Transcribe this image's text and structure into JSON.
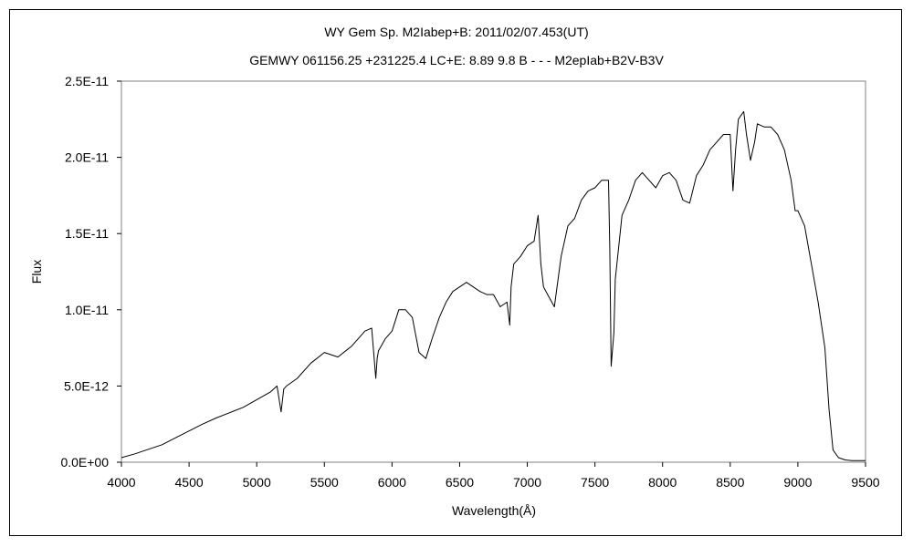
{
  "chart_data": {
    "type": "line",
    "title": "WY Gem     Sp. M2Iabep+B:    2011/02/07.453(UT)",
    "subtitle": "GEMWY 061156.25 +231225.4 LC+E: 8.89  9.8  B - - - M2epIab+B2V-B3V",
    "xlabel": "Wavelength(Å)",
    "ylabel": "Flux",
    "xlim": [
      4000,
      9500
    ],
    "ylim": [
      0,
      2.5e-11
    ],
    "x_ticks": [
      4000,
      4500,
      5000,
      5500,
      6000,
      6500,
      7000,
      7500,
      8000,
      8500,
      9000,
      9500
    ],
    "x_tick_labels": [
      "4000",
      "4500",
      "5000",
      "5500",
      "6000",
      "6500",
      "7000",
      "7500",
      "8000",
      "8500",
      "9000",
      "9500"
    ],
    "y_ticks": [
      0,
      5e-12,
      1e-11,
      1.5e-11,
      2e-11,
      2.5e-11
    ],
    "y_tick_labels": [
      "0.0E+00",
      "5.0E-12",
      "1.0E-11",
      "1.5E-11",
      "2.0E-11",
      "2.5E-11"
    ],
    "grid": false,
    "legend": "none",
    "line_color": "#000000",
    "series": [
      {
        "x": [
          4000,
          4100,
          4200,
          4300,
          4400,
          4500,
          4600,
          4700,
          4800,
          4900,
          5000,
          5100,
          5150,
          5180,
          5200,
          5220,
          5300,
          5400,
          5500,
          5600,
          5700,
          5800,
          5850,
          5880,
          5890,
          5900,
          5950,
          6000,
          6050,
          6100,
          6150,
          6200,
          6250,
          6300,
          6350,
          6400,
          6450,
          6500,
          6550,
          6600,
          6650,
          6700,
          6750,
          6800,
          6850,
          6870,
          6880,
          6900,
          6950,
          7000,
          7050,
          7080,
          7100,
          7120,
          7150,
          7200,
          7250,
          7300,
          7350,
          7400,
          7450,
          7500,
          7550,
          7600,
          7610,
          7620,
          7640,
          7650,
          7700,
          7750,
          7800,
          7850,
          7900,
          7950,
          8000,
          8050,
          8100,
          8150,
          8200,
          8250,
          8300,
          8350,
          8400,
          8450,
          8500,
          8520,
          8540,
          8560,
          8600,
          8620,
          8650,
          8680,
          8700,
          8750,
          8800,
          8850,
          8900,
          8950,
          8980,
          9000,
          9050,
          9100,
          9150,
          9200,
          9230,
          9260,
          9300,
          9350,
          9400,
          9450,
          9500
        ],
        "y": [
          3e-13,
          5.5e-13,
          8.5e-13,
          1.15e-12,
          1.6e-12,
          2.05e-12,
          2.5e-12,
          2.9e-12,
          3.25e-12,
          3.6e-12,
          4.1e-12,
          4.6e-12,
          5e-12,
          3.3e-12,
          4.8e-12,
          5e-12,
          5.5e-12,
          6.5e-12,
          7.2e-12,
          6.9e-12,
          7.6e-12,
          8.6e-12,
          8.8e-12,
          5.5e-12,
          6.8e-12,
          7.3e-12,
          8.1e-12,
          8.6e-12,
          1e-11,
          1e-11,
          9.5e-12,
          7.2e-12,
          6.8e-12,
          8.2e-12,
          9.5e-12,
          1.05e-11,
          1.12e-11,
          1.15e-11,
          1.18e-11,
          1.15e-11,
          1.12e-11,
          1.1e-11,
          1.1e-11,
          1.02e-11,
          1.05e-11,
          9e-12,
          1.15e-11,
          1.3e-11,
          1.35e-11,
          1.42e-11,
          1.45e-11,
          1.62e-11,
          1.3e-11,
          1.15e-11,
          1.1e-11,
          1.02e-11,
          1.35e-11,
          1.55e-11,
          1.6e-11,
          1.72e-11,
          1.78e-11,
          1.8e-11,
          1.85e-11,
          1.85e-11,
          1.4e-11,
          6.3e-12,
          8.5e-12,
          1.2e-11,
          1.62e-11,
          1.72e-11,
          1.85e-11,
          1.9e-11,
          1.85e-11,
          1.8e-11,
          1.88e-11,
          1.9e-11,
          1.85e-11,
          1.72e-11,
          1.7e-11,
          1.88e-11,
          1.95e-11,
          2.05e-11,
          2.1e-11,
          2.15e-11,
          2.15e-11,
          1.78e-11,
          2.05e-11,
          2.25e-11,
          2.3e-11,
          2.15e-11,
          1.98e-11,
          2.1e-11,
          2.22e-11,
          2.2e-11,
          2.2e-11,
          2.15e-11,
          2.05e-11,
          1.85e-11,
          1.65e-11,
          1.65e-11,
          1.55e-11,
          1.3e-11,
          1.05e-11,
          7.5e-12,
          3.5e-12,
          8e-13,
          3e-13,
          1.5e-13,
          1e-13,
          1e-13,
          1e-13
        ]
      }
    ]
  }
}
